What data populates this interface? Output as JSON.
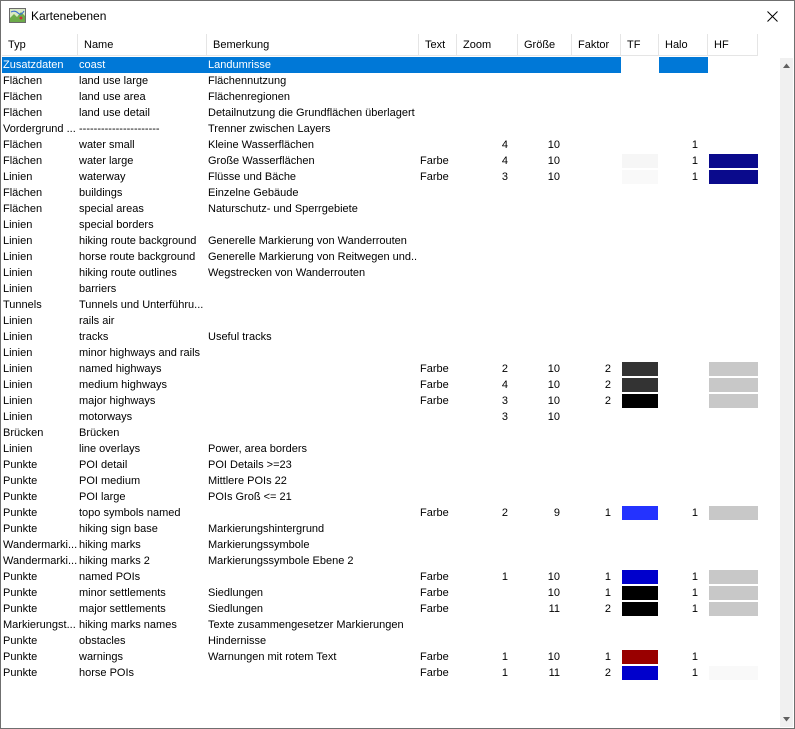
{
  "window": {
    "title": "Kartenebenen"
  },
  "columns": [
    "Typ",
    "Name",
    "Bemerkung",
    "Text",
    "Zoom",
    "Größe",
    "Faktor",
    "TF",
    "Halo",
    "HF"
  ],
  "rows": [
    {
      "typ": "Zusatzdaten",
      "name": "coast",
      "bemerkung": "Landumrisse",
      "text": "",
      "zoom": "",
      "groesse": "",
      "faktor": "",
      "tf": "",
      "halo": "",
      "hf": "",
      "selected": true
    },
    {
      "typ": "Flächen",
      "name": "land use large",
      "bemerkung": "Flächennutzung",
      "text": "",
      "zoom": "",
      "groesse": "",
      "faktor": "",
      "tf": "",
      "halo": "",
      "hf": ""
    },
    {
      "typ": "Flächen",
      "name": "land use area",
      "bemerkung": "Flächenregionen",
      "text": "",
      "zoom": "",
      "groesse": "",
      "faktor": "",
      "tf": "",
      "halo": "",
      "hf": ""
    },
    {
      "typ": "Flächen",
      "name": "land use detail",
      "bemerkung": "Detailnutzung die Grundflächen überlagert",
      "text": "",
      "zoom": "",
      "groesse": "",
      "faktor": "",
      "tf": "",
      "halo": "",
      "hf": ""
    },
    {
      "typ": "Vordergrund ...",
      "name": "----------------------",
      "bemerkung": "Trenner zwischen Layers",
      "text": "",
      "zoom": "",
      "groesse": "",
      "faktor": "",
      "tf": "",
      "halo": "",
      "hf": ""
    },
    {
      "typ": "Flächen",
      "name": "water small",
      "bemerkung": "Kleine Wasserflächen",
      "text": "",
      "zoom": "4",
      "groesse": "10",
      "faktor": "",
      "tf": "",
      "halo": "1",
      "hf": ""
    },
    {
      "typ": "Flächen",
      "name": "water large",
      "bemerkung": "Große Wasserflächen",
      "text": "Farbe",
      "zoom": "4",
      "groesse": "10",
      "faktor": "",
      "tf": "#f6f6f6",
      "halo": "1",
      "hf": "#0a0a8c"
    },
    {
      "typ": "Linien",
      "name": "waterway",
      "bemerkung": "Flüsse und Bäche",
      "text": "Farbe",
      "zoom": "3",
      "groesse": "10",
      "faktor": "",
      "tf": "#f9f9f9",
      "halo": "1",
      "hf": "#0a0a8c"
    },
    {
      "typ": "Flächen",
      "name": "buildings",
      "bemerkung": "Einzelne Gebäude",
      "text": "",
      "zoom": "",
      "groesse": "",
      "faktor": "",
      "tf": "",
      "halo": "",
      "hf": ""
    },
    {
      "typ": "Flächen",
      "name": "special areas",
      "bemerkung": "Naturschutz- und Sperrgebiete",
      "text": "",
      "zoom": "",
      "groesse": "",
      "faktor": "",
      "tf": "",
      "halo": "",
      "hf": ""
    },
    {
      "typ": "Linien",
      "name": "special borders",
      "bemerkung": "",
      "text": "",
      "zoom": "",
      "groesse": "",
      "faktor": "",
      "tf": "",
      "halo": "",
      "hf": ""
    },
    {
      "typ": "Linien",
      "name": "hiking route background",
      "bemerkung": "Generelle Markierung von Wanderrouten",
      "text": "",
      "zoom": "",
      "groesse": "",
      "faktor": "",
      "tf": "",
      "halo": "",
      "hf": ""
    },
    {
      "typ": "Linien",
      "name": "horse route background",
      "bemerkung": "Generelle Markierung von Reitwegen und...",
      "text": "",
      "zoom": "",
      "groesse": "",
      "faktor": "",
      "tf": "",
      "halo": "",
      "hf": ""
    },
    {
      "typ": "Linien",
      "name": "hiking route outlines",
      "bemerkung": "Wegstrecken von Wanderrouten",
      "text": "",
      "zoom": "",
      "groesse": "",
      "faktor": "",
      "tf": "",
      "halo": "",
      "hf": ""
    },
    {
      "typ": "Linien",
      "name": "barriers",
      "bemerkung": "",
      "text": "",
      "zoom": "",
      "groesse": "",
      "faktor": "",
      "tf": "",
      "halo": "",
      "hf": ""
    },
    {
      "typ": "Tunnels",
      "name": "Tunnels und Unterführu...",
      "bemerkung": "",
      "text": "",
      "zoom": "",
      "groesse": "",
      "faktor": "",
      "tf": "",
      "halo": "",
      "hf": ""
    },
    {
      "typ": "Linien",
      "name": "rails air",
      "bemerkung": "",
      "text": "",
      "zoom": "",
      "groesse": "",
      "faktor": "",
      "tf": "",
      "halo": "",
      "hf": ""
    },
    {
      "typ": "Linien",
      "name": "tracks",
      "bemerkung": "Useful tracks",
      "text": "",
      "zoom": "",
      "groesse": "",
      "faktor": "",
      "tf": "",
      "halo": "",
      "hf": ""
    },
    {
      "typ": "Linien",
      "name": "minor highways and rails",
      "bemerkung": "",
      "text": "",
      "zoom": "",
      "groesse": "",
      "faktor": "",
      "tf": "",
      "halo": "",
      "hf": ""
    },
    {
      "typ": "Linien",
      "name": "named highways",
      "bemerkung": "",
      "text": "Farbe",
      "zoom": "2",
      "groesse": "10",
      "faktor": "2",
      "tf": "#333333",
      "halo": "",
      "hf": "#c8c8c8"
    },
    {
      "typ": "Linien",
      "name": "medium highways",
      "bemerkung": "",
      "text": "Farbe",
      "zoom": "4",
      "groesse": "10",
      "faktor": "2",
      "tf": "#333333",
      "halo": "",
      "hf": "#c8c8c8"
    },
    {
      "typ": "Linien",
      "name": "major highways",
      "bemerkung": "",
      "text": "Farbe",
      "zoom": "3",
      "groesse": "10",
      "faktor": "2",
      "tf": "#000000",
      "halo": "",
      "hf": "#c8c8c8"
    },
    {
      "typ": "Linien",
      "name": "motorways",
      "bemerkung": "",
      "text": "",
      "zoom": "3",
      "groesse": "10",
      "faktor": "",
      "tf": "",
      "halo": "",
      "hf": ""
    },
    {
      "typ": "Brücken",
      "name": "Brücken",
      "bemerkung": "",
      "text": "",
      "zoom": "",
      "groesse": "",
      "faktor": "",
      "tf": "",
      "halo": "",
      "hf": ""
    },
    {
      "typ": "Linien",
      "name": "line overlays",
      "bemerkung": "Power, area borders",
      "text": "",
      "zoom": "",
      "groesse": "",
      "faktor": "",
      "tf": "",
      "halo": "",
      "hf": ""
    },
    {
      "typ": "Punkte",
      "name": "POI detail",
      "bemerkung": "POI Details >=23",
      "text": "",
      "zoom": "",
      "groesse": "",
      "faktor": "",
      "tf": "",
      "halo": "",
      "hf": ""
    },
    {
      "typ": "Punkte",
      "name": "POI medium",
      "bemerkung": "Mittlere POIs 22",
      "text": "",
      "zoom": "",
      "groesse": "",
      "faktor": "",
      "tf": "",
      "halo": "",
      "hf": ""
    },
    {
      "typ": "Punkte",
      "name": "POI large",
      "bemerkung": "POIs Groß <= 21",
      "text": "",
      "zoom": "",
      "groesse": "",
      "faktor": "",
      "tf": "",
      "halo": "",
      "hf": ""
    },
    {
      "typ": "Punkte",
      "name": "topo symbols named",
      "bemerkung": "",
      "text": "Farbe",
      "zoom": "2",
      "groesse": "9",
      "faktor": "1",
      "tf": "#2433ff",
      "halo": "1",
      "hf": "#c8c8c8"
    },
    {
      "typ": "Punkte",
      "name": "hiking sign base",
      "bemerkung": "Markierungshintergrund",
      "text": "",
      "zoom": "",
      "groesse": "",
      "faktor": "",
      "tf": "",
      "halo": "",
      "hf": ""
    },
    {
      "typ": "Wandermarki...",
      "name": "hiking marks",
      "bemerkung": "Markierungssymbole",
      "text": "",
      "zoom": "",
      "groesse": "",
      "faktor": "",
      "tf": "",
      "halo": "",
      "hf": ""
    },
    {
      "typ": "Wandermarki...",
      "name": "hiking marks 2",
      "bemerkung": "Markierungssymbole Ebene 2",
      "text": "",
      "zoom": "",
      "groesse": "",
      "faktor": "",
      "tf": "",
      "halo": "",
      "hf": ""
    },
    {
      "typ": "Punkte",
      "name": "named POIs",
      "bemerkung": "",
      "text": "Farbe",
      "zoom": "1",
      "groesse": "10",
      "faktor": "1",
      "tf": "#0000cc",
      "halo": "1",
      "hf": "#c8c8c8"
    },
    {
      "typ": "Punkte",
      "name": "minor settlements",
      "bemerkung": "Siedlungen",
      "text": "Farbe",
      "zoom": "",
      "groesse": "10",
      "faktor": "1",
      "tf": "#000000",
      "halo": "1",
      "hf": "#c8c8c8"
    },
    {
      "typ": "Punkte",
      "name": "major settlements",
      "bemerkung": "Siedlungen",
      "text": "Farbe",
      "zoom": "",
      "groesse": "11",
      "faktor": "2",
      "tf": "#000000",
      "halo": "1",
      "hf": "#c8c8c8"
    },
    {
      "typ": "Markierungst...",
      "name": "hiking marks names",
      "bemerkung": "Texte zusammengesetzer Markierungen",
      "text": "",
      "zoom": "",
      "groesse": "",
      "faktor": "",
      "tf": "",
      "halo": "",
      "hf": ""
    },
    {
      "typ": "Punkte",
      "name": "obstacles",
      "bemerkung": "Hindernisse",
      "text": "",
      "zoom": "",
      "groesse": "",
      "faktor": "",
      "tf": "",
      "halo": "",
      "hf": ""
    },
    {
      "typ": "Punkte",
      "name": "warnings",
      "bemerkung": "Warnungen mit rotem Text",
      "text": "Farbe",
      "zoom": "1",
      "groesse": "10",
      "faktor": "1",
      "tf": "#990000",
      "halo": "1",
      "hf": ""
    },
    {
      "typ": "Punkte",
      "name": "horse POIs",
      "bemerkung": "",
      "text": "Farbe",
      "zoom": "1",
      "groesse": "11",
      "faktor": "2",
      "tf": "#0000cc",
      "halo": "1",
      "hf": "#f9f9f9"
    }
  ],
  "icons": {
    "app": "map-layers-icon",
    "close": "close-icon",
    "scroll_up": "chevron-up-icon",
    "scroll_down": "chevron-down-icon"
  },
  "colors": {
    "selection": "#0078d7"
  }
}
